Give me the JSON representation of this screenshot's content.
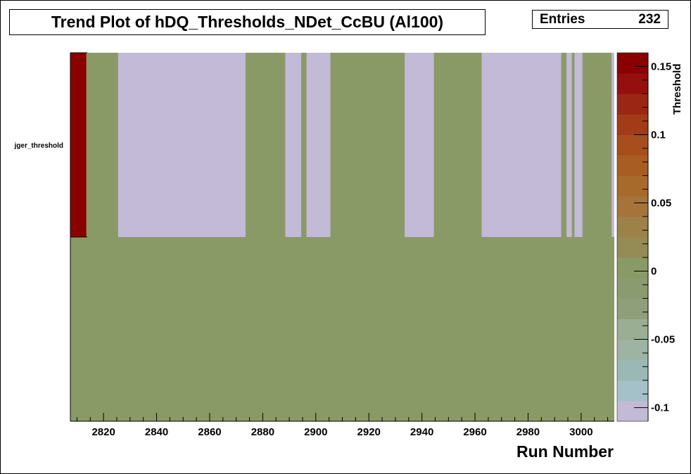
{
  "title": "Trend Plot of hDQ_Thresholds_NDet_CcBU (Al100)",
  "stats": {
    "label": "Entries",
    "value": "232"
  },
  "chart_data": {
    "type": "heatmap",
    "title": "Trend Plot of hDQ_Thresholds_NDet_CcBU (Al100)",
    "xlabel": "Run Number",
    "zlabel": "Threshold",
    "xlim": [
      2807.5,
      3012.5
    ],
    "x_ticks": [
      2820,
      2840,
      2860,
      2880,
      2900,
      2920,
      2940,
      2960,
      2980,
      3000
    ],
    "rows": [
      {
        "label": "",
        "default": 0
      },
      {
        "label": "jger_threshold",
        "default": 0
      }
    ],
    "cells": [
      {
        "row": 1,
        "x0": 2807.5,
        "x1": 2813.5,
        "value": 0.155
      },
      {
        "row": 1,
        "x0": 2825.5,
        "x1": 2873.5,
        "value": "empty"
      },
      {
        "row": 1,
        "x0": 2888.5,
        "x1": 2894.5,
        "value": "empty"
      },
      {
        "row": 1,
        "x0": 2896.5,
        "x1": 2905.5,
        "value": "empty"
      },
      {
        "row": 1,
        "x0": 2933.5,
        "x1": 2944.5,
        "value": "empty"
      },
      {
        "row": 1,
        "x0": 2962.5,
        "x1": 2992.5,
        "value": "empty"
      },
      {
        "row": 1,
        "x0": 2994.5,
        "x1": 2996.5,
        "value": "empty"
      },
      {
        "row": 1,
        "x0": 2997.5,
        "x1": 3000.5,
        "value": "empty"
      },
      {
        "row": 1,
        "x0": 3011.5,
        "x1": 3012.5,
        "value": "empty"
      }
    ],
    "zlim": [
      -0.11,
      0.16
    ],
    "z_ticks": [
      "0.15",
      "0.1",
      "0.05",
      "0",
      "-0.05",
      "-0.1"
    ],
    "colors": {
      "empty": "#c2bad7",
      "palette": [
        "#c2bad7",
        "#a4c0c8",
        "#9ab8b4",
        "#9db3a3",
        "#9aae94",
        "#8f9f7a",
        "#8a9b70",
        "#8a9a66",
        "#948b55",
        "#9c8148",
        "#a6733a",
        "#a76a2b",
        "#a85e22",
        "#a84d1c",
        "#a33b18",
        "#9a2713",
        "#940f0d",
        "#8b0000"
      ]
    }
  }
}
